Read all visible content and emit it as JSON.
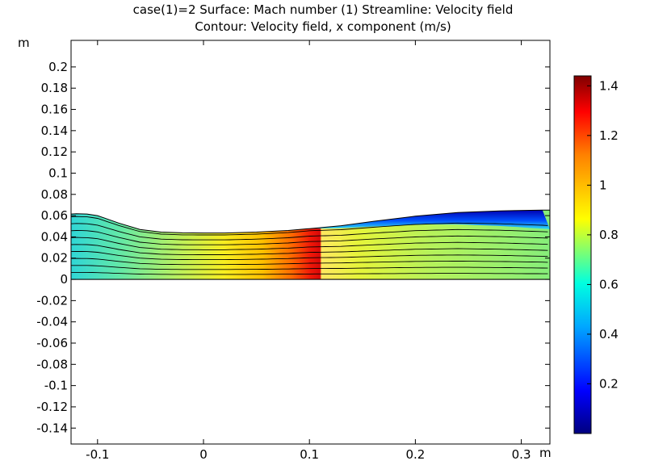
{
  "chart_data": {
    "type": "heatmap",
    "title": "case(1)=2   Surface: Mach number (1)  Streamline: Velocity field",
    "subtitle": "Contour: Velocity field, x component (m/s)",
    "xlabel": "m",
    "ylabel": "m",
    "xlim": [
      -0.125,
      0.327
    ],
    "ylim": [
      -0.155,
      0.225
    ],
    "x_ticks": [
      -0.1,
      0,
      0.1,
      0.2,
      0.3
    ],
    "x_tick_labels": [
      "-0.1",
      "0",
      "0.1",
      "0.2",
      "0.3"
    ],
    "y_ticks": [
      0.2,
      0.18,
      0.16,
      0.14,
      0.12,
      0.1,
      0.08,
      0.06,
      0.04,
      0.02,
      0,
      -0.02,
      -0.04,
      -0.06,
      -0.08,
      -0.1,
      -0.12,
      -0.14
    ],
    "y_tick_labels": [
      "0.2",
      "0.18",
      "0.16",
      "0.14",
      "0.12",
      "0.1",
      "0.08",
      "0.06",
      "0.04",
      "0.02",
      "0",
      "-0.02",
      "-0.04",
      "-0.06",
      "-0.08",
      "-0.1",
      "-0.12",
      "-0.14"
    ],
    "colorbar": {
      "range": [
        0.0,
        1.44
      ],
      "ticks": [
        1.4,
        1.2,
        1,
        0.8,
        0.6,
        0.4,
        0.2
      ],
      "tick_labels": [
        "1.4",
        "1.2",
        "1",
        "0.8",
        "0.6",
        "0.4",
        "0.2"
      ],
      "colormap": [
        "#00007f",
        "#0000ff",
        "#00c8ff",
        "#00ffe6",
        "#ffff00",
        "#ff7f00",
        "#ff0000",
        "#7f0000"
      ]
    },
    "domain_outline": {
      "x": [
        -0.125,
        -0.12,
        -0.11,
        -0.1,
        -0.08,
        -0.06,
        -0.04,
        -0.02,
        0,
        0.02,
        0.05,
        0.08,
        0.1,
        0.13,
        0.16,
        0.2,
        0.24,
        0.28,
        0.32,
        0.327
      ],
      "y": [
        0.0615,
        0.0618,
        0.0615,
        0.06,
        0.053,
        0.047,
        0.0445,
        0.0438,
        0.0437,
        0.0437,
        0.0445,
        0.046,
        0.0478,
        0.0505,
        0.0545,
        0.0595,
        0.063,
        0.0645,
        0.0652,
        0.0652
      ]
    },
    "streamline_count": 9,
    "shock_location_x": 0.1
  }
}
